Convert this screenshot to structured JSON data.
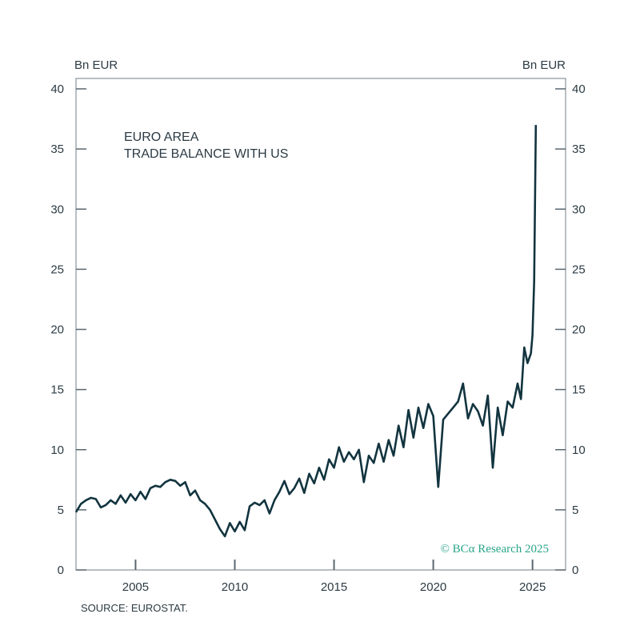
{
  "chart_data": {
    "type": "line",
    "title_lines": [
      "EURO AREA",
      "TRADE BALANCE WITH US"
    ],
    "ylabel_left": "Bn EUR",
    "ylabel_right": "Bn EUR",
    "ylim": [
      0,
      40
    ],
    "yticks": [
      "0",
      "5",
      "10",
      "15",
      "20",
      "25",
      "30",
      "35",
      "40"
    ],
    "xlim": [
      "2002-01",
      "2026-09"
    ],
    "xticks": [
      "2005",
      "2010",
      "2015",
      "2020",
      "2025"
    ],
    "grid": false,
    "source": "SOURCE: EUROSTAT.",
    "watermark": "© BCα Research 2025",
    "colors": {
      "line": "#12343f",
      "axis": "#5a6770",
      "watermark": "#2aa58a"
    },
    "series": [
      {
        "x": [
          "2002-01",
          "2002-04",
          "2002-07",
          "2002-10",
          "2003-01",
          "2003-04",
          "2003-07",
          "2003-10",
          "2004-01",
          "2004-04",
          "2004-07",
          "2004-10",
          "2005-01",
          "2005-04",
          "2005-07",
          "2005-10",
          "2006-01",
          "2006-04",
          "2006-07",
          "2006-10",
          "2007-01",
          "2007-04",
          "2007-07",
          "2007-10",
          "2008-01",
          "2008-04",
          "2008-07",
          "2008-10",
          "2009-01",
          "2009-04",
          "2009-07",
          "2009-10",
          "2010-01",
          "2010-04",
          "2010-07",
          "2010-10",
          "2011-01",
          "2011-04",
          "2011-07",
          "2011-10",
          "2012-01",
          "2012-04",
          "2012-07",
          "2012-10",
          "2013-01",
          "2013-04",
          "2013-07",
          "2013-10",
          "2014-01",
          "2014-04",
          "2014-07",
          "2014-10",
          "2015-01",
          "2015-04",
          "2015-07",
          "2015-10",
          "2016-01",
          "2016-04",
          "2016-07",
          "2016-10",
          "2017-01",
          "2017-04",
          "2017-07",
          "2017-10",
          "2018-01",
          "2018-04",
          "2018-07",
          "2018-10",
          "2019-01",
          "2019-04",
          "2019-07",
          "2019-10",
          "2020-01",
          "2020-04",
          "2020-07",
          "2020-10",
          "2021-01",
          "2021-04",
          "2021-07",
          "2021-10",
          "2022-01",
          "2022-04",
          "2022-07",
          "2022-10",
          "2023-01",
          "2023-04",
          "2023-07",
          "2023-10",
          "2024-01",
          "2024-04",
          "2024-06",
          "2024-08",
          "2024-10",
          "2024-12",
          "2025-01",
          "2025-02",
          "2025-03"
        ],
        "y": [
          4.8,
          5.5,
          5.8,
          6.0,
          5.9,
          5.2,
          5.4,
          5.8,
          5.5,
          6.2,
          5.6,
          6.3,
          5.8,
          6.5,
          5.9,
          6.8,
          7.0,
          6.9,
          7.3,
          7.5,
          7.4,
          7.0,
          7.3,
          6.2,
          6.6,
          5.8,
          5.5,
          5.0,
          4.2,
          3.4,
          2.8,
          3.9,
          3.2,
          4.0,
          3.3,
          5.3,
          5.6,
          5.4,
          5.8,
          4.7,
          5.8,
          6.5,
          7.4,
          6.3,
          6.8,
          7.6,
          6.4,
          8.0,
          7.2,
          8.5,
          7.5,
          9.2,
          8.5,
          10.2,
          9.0,
          9.8,
          9.2,
          10.0,
          7.3,
          9.5,
          8.9,
          10.5,
          9.0,
          10.8,
          9.5,
          12.0,
          10.2,
          13.3,
          11.0,
          13.5,
          11.8,
          13.8,
          12.8,
          6.9,
          12.5,
          13.0,
          13.5,
          14.0,
          15.5,
          12.6,
          13.8,
          13.2,
          12.0,
          14.5,
          8.5,
          13.5,
          11.2,
          14.0,
          13.5,
          15.5,
          14.2,
          18.5,
          17.2,
          18.0,
          19.5,
          24.0,
          37.0
        ]
      }
    ]
  }
}
